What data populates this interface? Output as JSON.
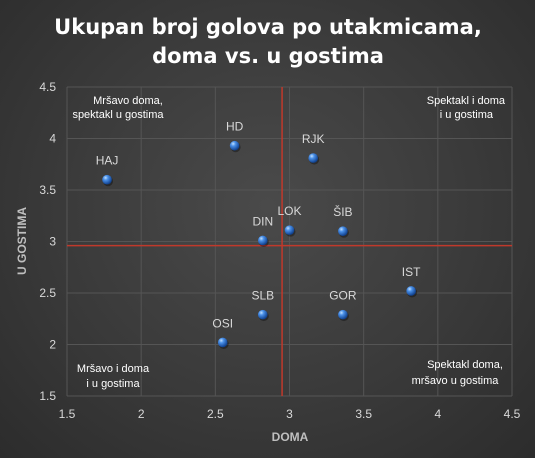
{
  "chart_data": {
    "type": "scatter",
    "title_lines": [
      "Ukupan broj golova po utakmicama,",
      "doma vs. u gostima"
    ],
    "xlabel": "DOMA",
    "ylabel": "U GOSTIMA",
    "xlim": [
      1.5,
      4.5
    ],
    "ylim": [
      1.5,
      4.5
    ],
    "xticks": [
      "1.5",
      "2",
      "2.5",
      "3",
      "3.5",
      "4",
      "4.5"
    ],
    "yticks": [
      "1.5",
      "2",
      "2.5",
      "3",
      "3.5",
      "4",
      "4.5"
    ],
    "grid": true,
    "reference_lines": {
      "x": 2.95,
      "y": 2.96,
      "color": "#c0392b"
    },
    "points": [
      {
        "label": "HD",
        "x": 2.63,
        "y": 3.93
      },
      {
        "label": "RJK",
        "x": 3.16,
        "y": 3.81
      },
      {
        "label": "HAJ",
        "x": 1.77,
        "y": 3.6
      },
      {
        "label": "DIN",
        "x": 2.82,
        "y": 3.01
      },
      {
        "label": "LOK",
        "x": 3.0,
        "y": 3.11
      },
      {
        "label": "ŠIB",
        "x": 3.36,
        "y": 3.1
      },
      {
        "label": "IST",
        "x": 3.82,
        "y": 2.52
      },
      {
        "label": "SLB",
        "x": 2.82,
        "y": 2.29
      },
      {
        "label": "GOR",
        "x": 3.36,
        "y": 2.29
      },
      {
        "label": "OSI",
        "x": 2.55,
        "y": 2.02
      }
    ],
    "quadrant_labels": {
      "top_left": [
        "Mršavo doma,",
        "spektakl u gostima"
      ],
      "top_right": [
        "Spektakl i doma",
        "i u gostima"
      ],
      "bottom_left": [
        "Mršavo i doma",
        "i u gostima"
      ],
      "bottom_right": [
        "Spektakl doma,",
        "mršavo u gostima"
      ]
    },
    "marker_color": "#2e75d6"
  }
}
